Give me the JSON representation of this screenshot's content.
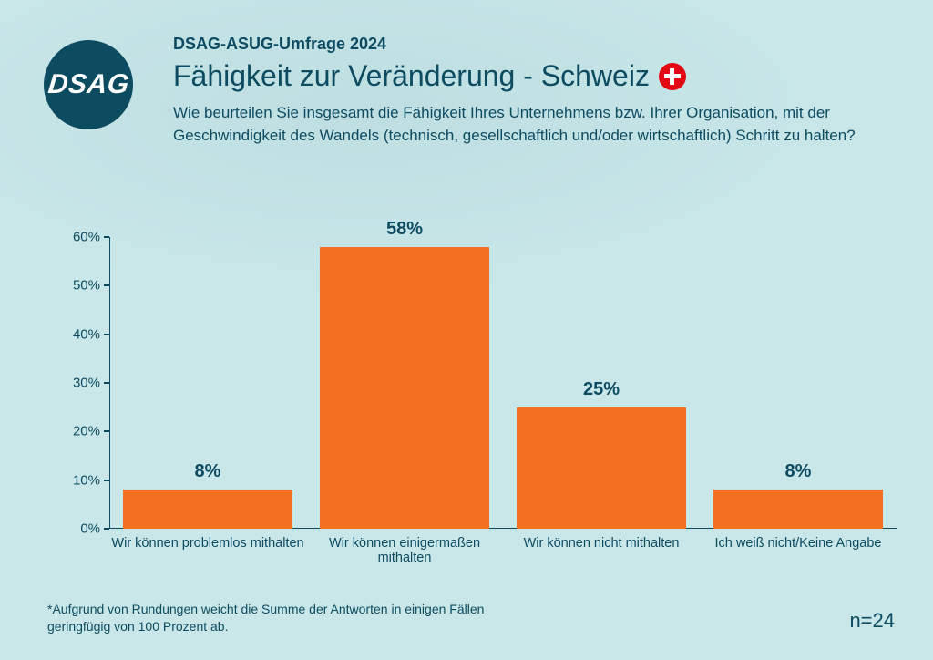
{
  "logo": {
    "text": "DSAG",
    "bg": "#0d4b61",
    "fg": "#ffffff"
  },
  "surtitle": "DSAG-ASUG-Umfrage 2024",
  "title": "Fähigkeit zur Veränderung - Schweiz",
  "flag": {
    "bg": "#e30613",
    "cross": "#ffffff"
  },
  "subtitle": "Wie beurteilen Sie insgesamt die Fähigkeit Ihres Unternehmens bzw. Ihrer Organisation, mit der Geschwindigkeit des Wandels (technisch, gesellschaftlich und/oder wirtschaftlich) Schritt zu halten?",
  "chart": {
    "type": "bar",
    "categories": [
      "Wir können problemlos mithalten",
      "Wir können einigermaßen mithalten",
      "Wir können nicht mithalten",
      "Ich weiß nicht/Keine Angabe"
    ],
    "values": [
      8,
      58,
      25,
      8
    ],
    "value_labels": [
      "8%",
      "58%",
      "25%",
      "8%"
    ],
    "bar_color": "#f37021",
    "ylim": [
      0,
      60
    ],
    "ytick_step": 10,
    "ytick_labels": [
      "0%",
      "10%",
      "20%",
      "30%",
      "40%",
      "50%",
      "60%"
    ],
    "axis_color": "#0d4b61",
    "background_color": "#c9e7e9",
    "label_fontsize": 15,
    "value_fontsize": 20,
    "value_fontweight": "700",
    "category_fontsize": 14.5,
    "bar_width": 0.86
  },
  "footnote": "*Aufgrund von Rundungen weicht die Summe der Antworten in einigen Fällen geringfügig von 100 Prozent ab.",
  "n_label": "n=24",
  "colors": {
    "background": "#c9e7e9",
    "text": "#0d4b61",
    "accent": "#f37021"
  }
}
